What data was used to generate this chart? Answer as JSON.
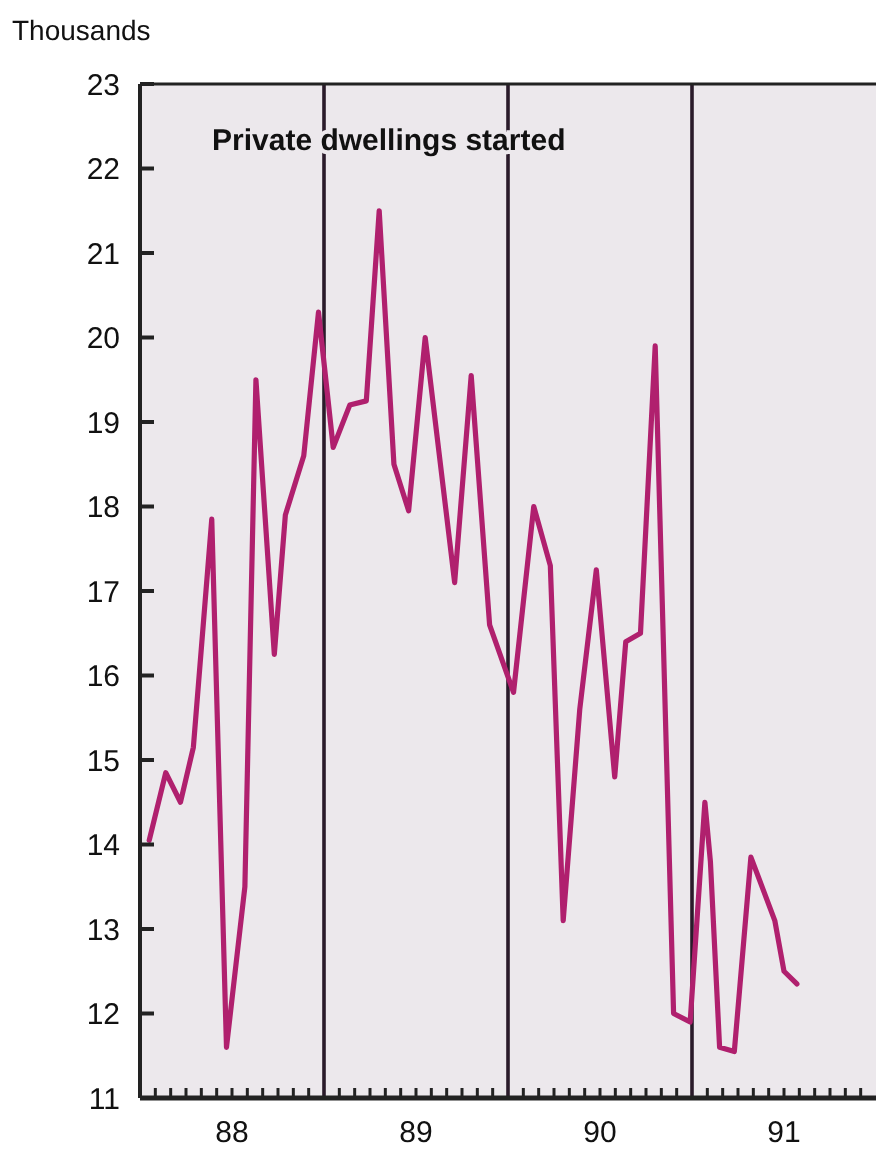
{
  "chart_data": {
    "type": "line",
    "title": "Private dwellings started",
    "ylabel": "Thousands",
    "x": [
      87.55,
      87.64,
      87.72,
      87.79,
      87.89,
      87.97,
      88.07,
      88.13,
      88.23,
      88.29,
      88.39,
      88.47,
      88.55,
      88.64,
      88.73,
      88.8,
      88.88,
      88.96,
      89.05,
      89.21,
      89.3,
      89.4,
      89.53,
      89.64,
      89.73,
      89.8,
      89.89,
      89.98,
      90.08,
      90.14,
      90.22,
      90.3,
      90.4,
      90.49,
      90.57,
      90.6,
      90.65,
      90.73,
      90.82,
      90.95,
      91.0,
      91.07
    ],
    "series": [
      {
        "color": "#b0206e",
        "values": [
          14.05,
          14.85,
          14.5,
          15.15,
          17.85,
          11.6,
          13.5,
          19.5,
          16.25,
          17.9,
          18.6,
          20.3,
          18.7,
          19.2,
          19.25,
          21.5,
          18.5,
          17.95,
          20.0,
          17.1,
          19.55,
          16.6,
          15.8,
          18.0,
          17.3,
          13.1,
          15.6,
          17.25,
          14.8,
          16.4,
          16.5,
          19.9,
          12.0,
          11.9,
          14.5,
          13.8,
          11.6,
          11.55,
          13.85,
          13.1,
          12.5,
          12.35
        ]
      }
    ],
    "xlim": [
      87.5,
      91.5
    ],
    "xticks": [
      88,
      89,
      90,
      91
    ],
    "ylim": [
      11,
      23
    ],
    "yticks": [
      11,
      12,
      13,
      14,
      15,
      16,
      17,
      18,
      19,
      20,
      21,
      22,
      23
    ],
    "ref_lines": [
      {
        "axis": "x",
        "value": 88.5
      },
      {
        "axis": "x",
        "value": 89.5
      },
      {
        "axis": "x",
        "value": 90.5
      }
    ],
    "grid": false,
    "marker": "none",
    "line_style": "solid"
  }
}
